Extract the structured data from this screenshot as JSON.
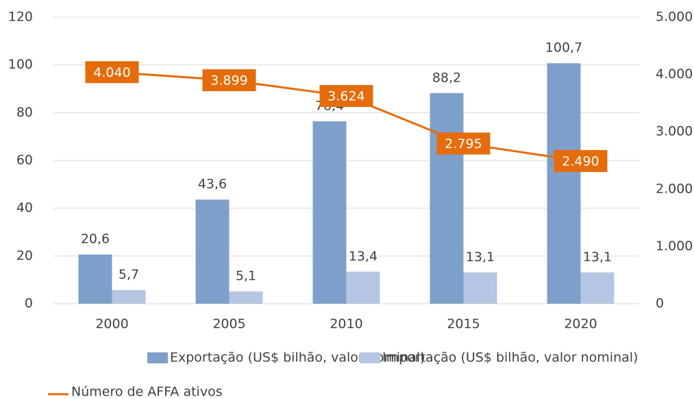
{
  "chart_data": {
    "type": "bar_line",
    "categories": [
      "2000",
      "2005",
      "2010",
      "2015",
      "2020"
    ],
    "series": [
      {
        "name": "Exportação (US$ bilhão, valor nominal)",
        "type": "bar",
        "color": "#7f9fcb",
        "values": [
          20.6,
          43.6,
          76.4,
          88.2,
          100.7
        ],
        "value_labels": [
          "20,6",
          "43,6",
          "76,4",
          "88,2",
          "100,7"
        ]
      },
      {
        "name": "Importação (US$ bilhão, valor nominal)",
        "type": "bar",
        "color": "#b4c6e1",
        "values": [
          5.7,
          5.1,
          13.4,
          13.1,
          13.1
        ],
        "value_labels": [
          "5,7",
          "5,1",
          "13,4",
          "13,1",
          "13,1"
        ]
      },
      {
        "name": "Número de AFFA ativos",
        "type": "line",
        "axis": "y2",
        "color": "#e46c0a",
        "values": [
          4040,
          3899,
          3624,
          2795,
          2490
        ],
        "value_labels": [
          "4.040",
          "3.899",
          "3.624",
          "2.795",
          "2.490"
        ]
      }
    ],
    "ylim": [
      0,
      120
    ],
    "yticks": [
      0,
      20,
      40,
      60,
      80,
      100,
      120
    ],
    "y2lim": [
      0,
      5000
    ],
    "y2ticks": [
      0,
      {
        "value": 1000,
        "label": "1.000"
      },
      {
        "value": 2000,
        "label": "2.000"
      },
      {
        "value": 3000,
        "label": "3.000"
      },
      {
        "value": 4000,
        "label": "4.000"
      },
      {
        "value": 5000,
        "label": "5.000"
      }
    ],
    "grid": true,
    "legend": "bottom"
  }
}
